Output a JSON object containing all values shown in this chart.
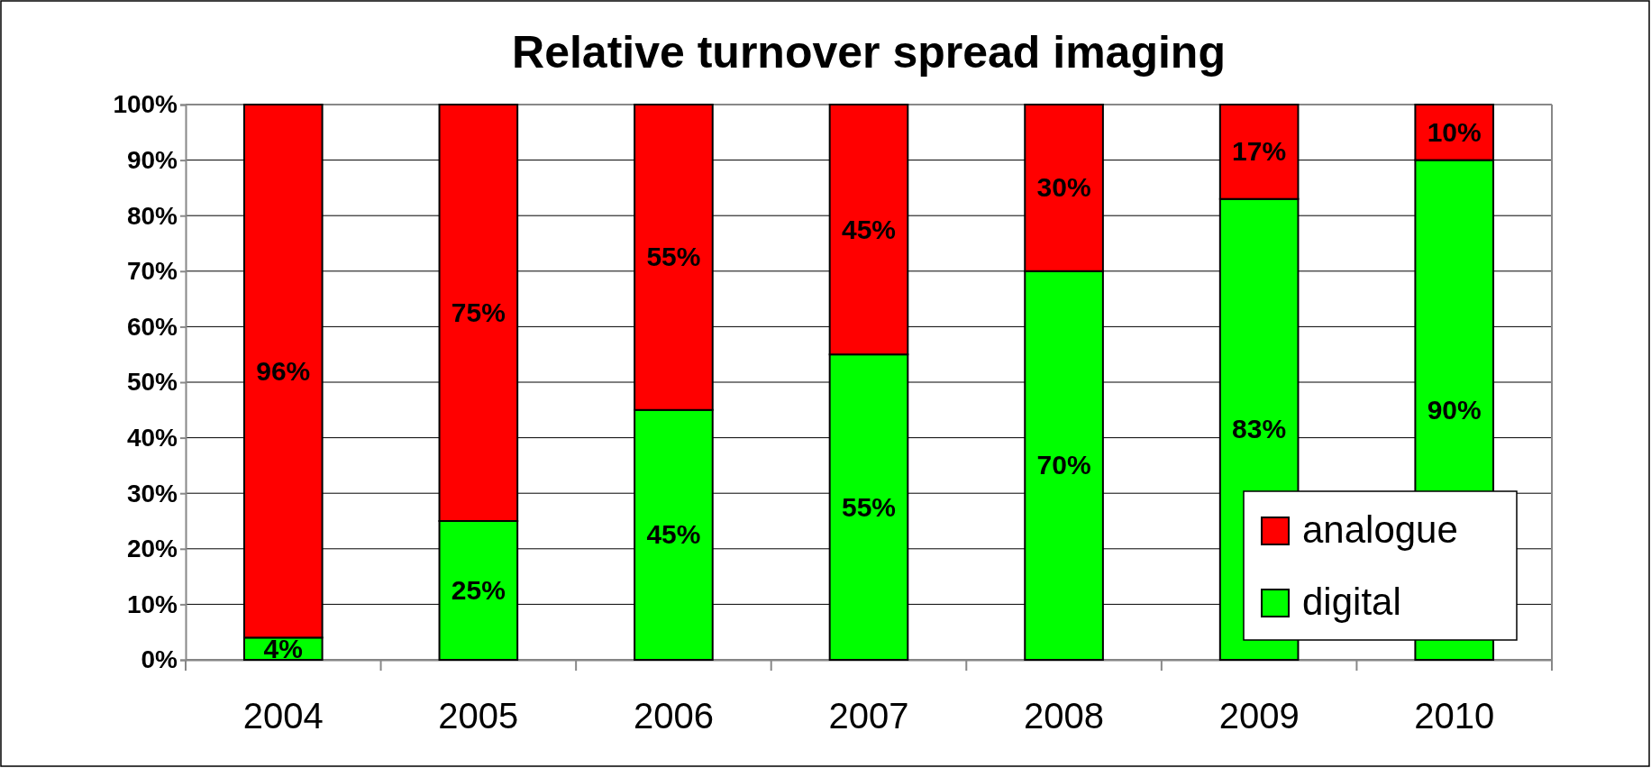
{
  "chart_data": {
    "type": "bar",
    "title": "Relative turnover spread imaging",
    "categories": [
      "2004",
      "2005",
      "2006",
      "2007",
      "2008",
      "2009",
      "2010"
    ],
    "stacked": true,
    "series": [
      {
        "name": "digital",
        "color": "#00ff00",
        "values": [
          4,
          25,
          45,
          55,
          70,
          83,
          90
        ],
        "value_labels": [
          "4%",
          "25%",
          "45%",
          "55%",
          "70%",
          "83%",
          "90%"
        ]
      },
      {
        "name": "analogue",
        "color": "#ff0000",
        "values": [
          96,
          75,
          55,
          45,
          30,
          17,
          10
        ],
        "value_labels": [
          "96%",
          "75%",
          "55%",
          "45%",
          "30%",
          "17%",
          "10%"
        ]
      }
    ],
    "ylim": [
      0,
      100
    ],
    "yticks": [
      {
        "value": 0,
        "label": "0%"
      },
      {
        "value": 10,
        "label": "10%"
      },
      {
        "value": 20,
        "label": "20%"
      },
      {
        "value": 30,
        "label": "30%"
      },
      {
        "value": 40,
        "label": "40%"
      },
      {
        "value": 50,
        "label": "50%"
      },
      {
        "value": 60,
        "label": "60%"
      },
      {
        "value": 70,
        "label": "70%"
      },
      {
        "value": 80,
        "label": "80%"
      },
      {
        "value": 90,
        "label": "90%"
      },
      {
        "value": 100,
        "label": "100%"
      }
    ],
    "grid": "y",
    "legend": "bottom right"
  }
}
